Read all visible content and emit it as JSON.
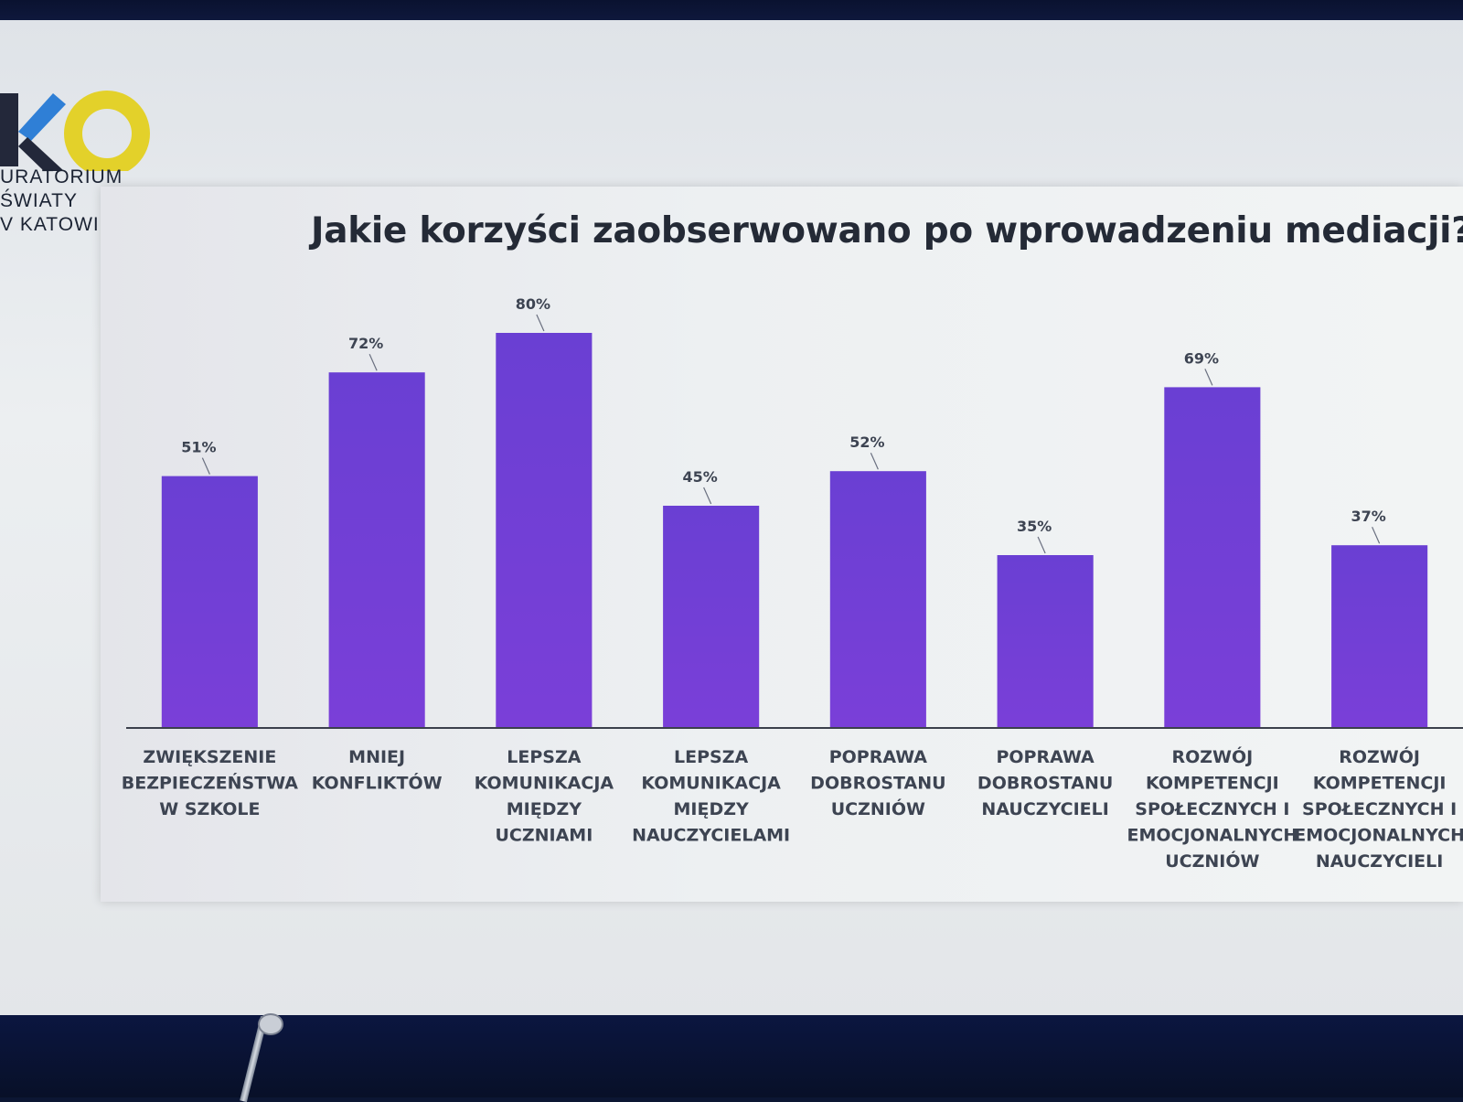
{
  "org": {
    "lines": [
      "URATORIUM",
      "ŚWIATY",
      "V KATOWI"
    ],
    "logo_letters": "KO",
    "logo_colors": {
      "k_dark": "#23283a",
      "k_blue": "#2f7fd6",
      "o_ring": "#e3d12a"
    }
  },
  "chart_data": {
    "type": "bar",
    "title": "Jakie korzyści zaobserwowano po wprowadzeniu mediacji?",
    "xlabel": "",
    "ylabel": "",
    "ylim": [
      0,
      100
    ],
    "grid": false,
    "legend": "none",
    "bar_color": "#6a3fd3",
    "categories": [
      [
        "ZWIĘKSZENIE",
        "BEZPIECZEŃSTWA",
        "W SZKOLE"
      ],
      [
        "MNIEJ",
        "KONFLIKTÓW"
      ],
      [
        "LEPSZA",
        "KOMUNIKACJA",
        "MIĘDZY",
        "UCZNIAMI"
      ],
      [
        "LEPSZA",
        "KOMUNIKACJA",
        "MIĘDZY",
        "NAUCZYCIELAMI"
      ],
      [
        "POPRAWA",
        "DOBROSTANU",
        "UCZNIÓW"
      ],
      [
        "POPRAWA",
        "DOBROSTANU",
        "NAUCZYCIELI"
      ],
      [
        "ROZWÓJ",
        "KOMPETENCJI",
        "SPOŁECZNYCH I",
        "EMOCJONALNYCH",
        "UCZNIÓW"
      ],
      [
        "ROZWÓJ",
        "KOMPETENCJI",
        "SPOŁECZNYCH I",
        "EMOCJONALNYCH",
        "NAUCZYCIELI"
      ]
    ],
    "values": [
      51,
      72,
      80,
      45,
      52,
      35,
      69,
      37
    ],
    "value_labels": [
      "51%",
      "72%",
      "80%",
      "45%",
      "52%",
      "35%",
      "69%",
      "37%"
    ]
  }
}
